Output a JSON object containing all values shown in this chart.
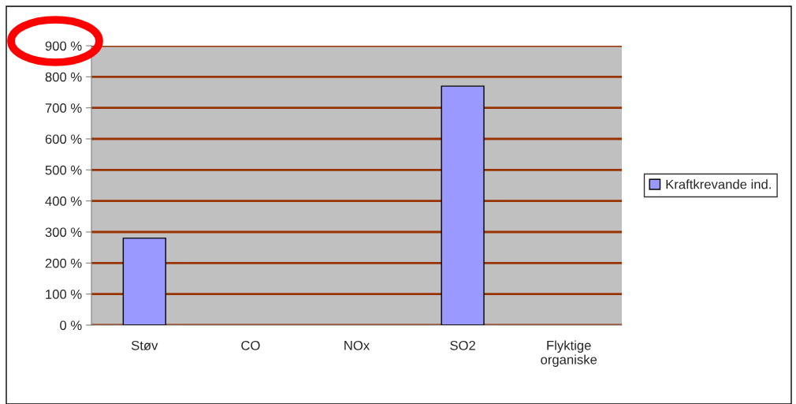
{
  "chart_data": {
    "type": "bar",
    "categories": [
      "Støv",
      "CO",
      "NOx",
      "SO2",
      "Flyktige\norganiske"
    ],
    "series": [
      {
        "name": "Kraftkrevande ind.",
        "color": "#9999ff",
        "values": [
          280,
          null,
          null,
          770,
          null
        ]
      }
    ],
    "ylim": [
      0,
      900
    ],
    "yticks": [
      {
        "value": 0,
        "label": "0 %"
      },
      {
        "value": 100,
        "label": "100 %"
      },
      {
        "value": 200,
        "label": "200 %"
      },
      {
        "value": 300,
        "label": "300 %"
      },
      {
        "value": 400,
        "label": "400 %"
      },
      {
        "value": 500,
        "label": "500 %"
      },
      {
        "value": 600,
        "label": "600 %"
      },
      {
        "value": 700,
        "label": "700 %"
      },
      {
        "value": 800,
        "label": "800 %"
      },
      {
        "value": 900,
        "label": "900 %"
      }
    ],
    "grid": "y",
    "legend": "right"
  }
}
